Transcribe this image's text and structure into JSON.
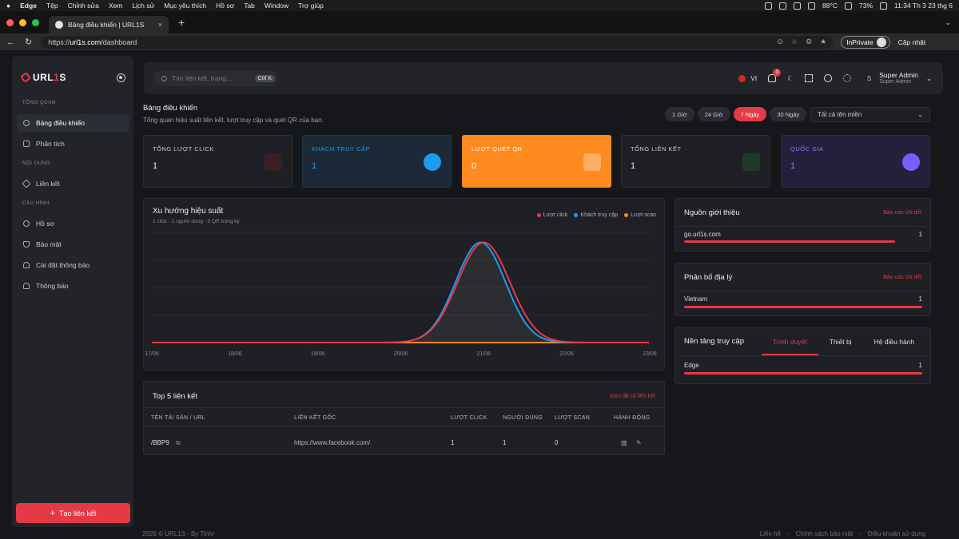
{
  "os": {
    "app_name": "Edge",
    "menu": [
      "Tệp",
      "Chỉnh sửa",
      "Xem",
      "Lịch sử",
      "Mục yêu thích",
      "Hồ sơ",
      "Tab",
      "Window",
      "Trợ giúp"
    ],
    "temp": "88°C",
    "battery": "73%",
    "clock": "11:34 Th 3 23 thg 6"
  },
  "browser": {
    "tab_title": "Bảng điều khiển | URL1S",
    "url_prefix": "https://",
    "url_domain": "url1s.com",
    "url_path": "/dashboard",
    "inprivate": "InPrivate",
    "update": "Cập nhật",
    "close_tab": "×",
    "new_tab": "+"
  },
  "sidebar": {
    "logo_a": "URL",
    "logo_b": "1",
    "logo_c": "S",
    "sections": {
      "overview": "TỔNG QUAN",
      "content": "NỘI DUNG",
      "settings": "CẤU HÌNH"
    },
    "items": [
      {
        "label": "Bảng điều khiển",
        "active": true
      },
      {
        "label": "Phân tích"
      },
      {
        "label": "Liên kết"
      },
      {
        "label": "Hồ sơ"
      },
      {
        "label": "Bảo mật"
      },
      {
        "label": "Cài đặt thông báo"
      },
      {
        "label": "Thông báo"
      }
    ],
    "create_button": "Tạo liên kết"
  },
  "topbar": {
    "search_placeholder": "Tìm liên kết, trang...",
    "search_shortcut": "Ctrl K",
    "lang": "VI",
    "notif_count": "3",
    "user_initial": "S",
    "user_name": "Super Admin",
    "user_role": "Super Admin"
  },
  "page": {
    "title": "Bảng điều khiển",
    "subtitle": "Tổng quan hiệu suất liên kết, lượt truy cập và quét QR của bạn.",
    "ranges": [
      "1 Giờ",
      "24 Giờ",
      "7 Ngày",
      "30 Ngày"
    ],
    "active_range": "7 Ngày",
    "domain_select": "Tất cả tên miền"
  },
  "stats": [
    {
      "label": "TỔNG LƯỢT CLICK",
      "value": "1",
      "color": "#e63946"
    },
    {
      "label": "KHÁCH TRUY CẬP",
      "value": "1",
      "color": "#1d9bf0"
    },
    {
      "label": "LƯỢT QUÉT QR",
      "value": "0",
      "color": "#ff8a1f"
    },
    {
      "label": "TỔNG LIÊN KẾT",
      "value": "1",
      "color": "#22c55e"
    },
    {
      "label": "QUỐC GIA",
      "value": "1",
      "color": "#7c5cff"
    }
  ],
  "chart": {
    "title": "Xu hướng hiệu suất",
    "subtitle": "1 click · 1 người dùng · 0 QR trong kỳ"
  },
  "chart_data": {
    "type": "area",
    "x": [
      "17/06",
      "18/06",
      "19/06",
      "20/06",
      "21/06",
      "22/06",
      "23/06"
    ],
    "series": [
      {
        "name": "Lượt click",
        "color": "#e63946",
        "values": [
          0,
          0,
          0,
          0,
          1,
          0,
          0
        ]
      },
      {
        "name": "Khách truy cập",
        "color": "#1d9bf0",
        "values": [
          0,
          0,
          0,
          0,
          1,
          0,
          0
        ]
      },
      {
        "name": "Lượt scan",
        "color": "#ff8a1f",
        "values": [
          0,
          0,
          0,
          0,
          0,
          0,
          0
        ]
      }
    ],
    "ylim": [
      0,
      1.1
    ],
    "grid": true,
    "legend": "top-right"
  },
  "referrers": {
    "title": "Nguồn giới thiệu",
    "link": "Báo cáo chi tiết",
    "rows": [
      {
        "label": "go.url1s.com",
        "value": "1",
        "share": 1.0
      }
    ]
  },
  "geo": {
    "title": "Phân bố địa lý",
    "link": "Báo cáo chi tiết",
    "rows": [
      {
        "label": "Vietnam",
        "value": "1",
        "share": 1.0
      }
    ]
  },
  "platform": {
    "title": "Nền tảng truy cập",
    "tabs": [
      "Trình duyệt",
      "Thiết bị",
      "Hệ điều hành"
    ],
    "rows": [
      {
        "label": "Edge",
        "value": "1",
        "share": 1.0
      }
    ]
  },
  "top_links": {
    "title": "Top 5 liên kết",
    "link": "Xem tất cả liên kết",
    "headers": [
      "TÊN TÀI SẢN / URL",
      "LIÊN KẾT GỐC",
      "LƯỢT CLICK",
      "NGƯỜI DÙNG",
      "LƯỢT SCAN",
      "HÀNH ĐỘNG"
    ],
    "rows": [
      {
        "slug": "/BBP9",
        "original": "https://www.facebook.com/",
        "clicks": "1",
        "users": "1",
        "scans": "0"
      }
    ]
  },
  "footer": {
    "left": "2026 © URL1S - By Tinhr",
    "links": [
      "Liên hệ",
      "Chính sách bảo mật",
      "Điều khoản sử dụng"
    ]
  }
}
